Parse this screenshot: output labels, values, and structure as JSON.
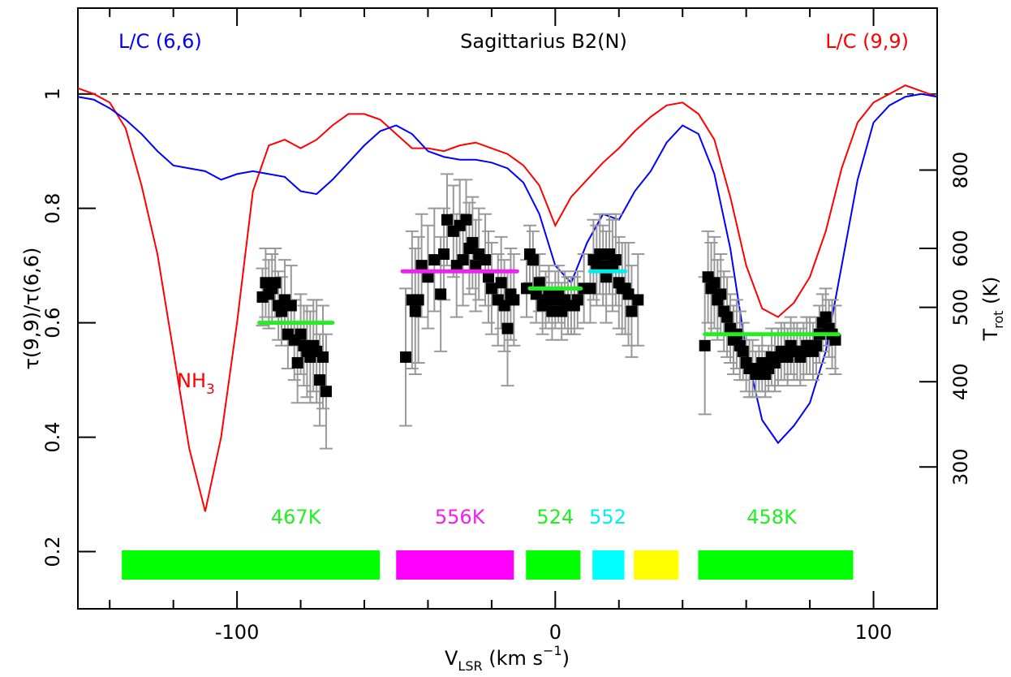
{
  "chart_data": {
    "type": "line",
    "title": "Sagittarius B2(N)",
    "xlim": [
      -150,
      120
    ],
    "ylim": [
      0.1,
      1.15
    ],
    "xticks": [
      -100,
      0,
      100
    ],
    "xminorticks": [
      -140,
      -120,
      -80,
      -60,
      -40,
      -20,
      20,
      40,
      60,
      80,
      120
    ],
    "yticks": [
      0.2,
      0.4,
      0.6,
      0.8,
      1
    ],
    "y2ticks": [
      300,
      400,
      500,
      600,
      800
    ],
    "y2tick_positions": [
      0.348,
      0.497,
      0.627,
      0.73,
      0.867
    ],
    "xlabel": {
      "main": "V",
      "sub": "LSR",
      "mid": " (km s",
      "sup": "−1",
      "end": ")"
    },
    "ylabel": "τ(9,9)/τ(6,6)",
    "y2label": {
      "main": "T",
      "sub": "rot",
      "end": " (K)"
    },
    "reference_line": 1,
    "annotation": {
      "main": "NH",
      "sub": "3"
    },
    "series": [
      {
        "name": "L/C (9,9)",
        "color": "#ff0000",
        "x": [
          -150,
          -145,
          -140,
          -135,
          -130,
          -125,
          -120,
          -115,
          -110,
          -105,
          -100,
          -95,
          -90,
          -85,
          -80,
          -75,
          -70,
          -65,
          -60,
          -55,
          -50,
          -45,
          -40,
          -35,
          -30,
          -25,
          -20,
          -15,
          -10,
          -5,
          0,
          5,
          10,
          15,
          20,
          25,
          30,
          35,
          40,
          45,
          50,
          55,
          60,
          65,
          70,
          75,
          80,
          85,
          90,
          95,
          100,
          105,
          110,
          115,
          120
        ],
        "values": [
          1.01,
          1.0,
          0.985,
          0.94,
          0.84,
          0.72,
          0.55,
          0.38,
          0.27,
          0.4,
          0.6,
          0.83,
          0.91,
          0.92,
          0.905,
          0.92,
          0.945,
          0.965,
          0.965,
          0.955,
          0.93,
          0.905,
          0.905,
          0.9,
          0.91,
          0.915,
          0.905,
          0.895,
          0.875,
          0.84,
          0.77,
          0.82,
          0.85,
          0.88,
          0.905,
          0.935,
          0.96,
          0.98,
          0.985,
          0.965,
          0.92,
          0.82,
          0.7,
          0.625,
          0.61,
          0.635,
          0.68,
          0.76,
          0.87,
          0.95,
          0.985,
          1.0,
          1.015,
          1.005,
          0.995
        ]
      },
      {
        "name": "L/C (6,6)",
        "color": "#0000ff",
        "x": [
          -150,
          -145,
          -140,
          -135,
          -130,
          -125,
          -120,
          -115,
          -110,
          -105,
          -100,
          -95,
          -90,
          -85,
          -80,
          -75,
          -70,
          -65,
          -60,
          -55,
          -50,
          -45,
          -40,
          -35,
          -30,
          -25,
          -20,
          -15,
          -10,
          -5,
          0,
          5,
          10,
          15,
          20,
          25,
          30,
          35,
          40,
          45,
          50,
          55,
          60,
          65,
          70,
          75,
          80,
          85,
          90,
          95,
          100,
          105,
          110,
          115,
          120
        ],
        "values": [
          0.995,
          0.99,
          0.975,
          0.955,
          0.93,
          0.9,
          0.875,
          0.87,
          0.865,
          0.85,
          0.86,
          0.865,
          0.86,
          0.855,
          0.83,
          0.825,
          0.85,
          0.88,
          0.91,
          0.935,
          0.945,
          0.93,
          0.9,
          0.89,
          0.885,
          0.885,
          0.88,
          0.87,
          0.845,
          0.79,
          0.7,
          0.67,
          0.74,
          0.79,
          0.78,
          0.83,
          0.865,
          0.915,
          0.945,
          0.93,
          0.86,
          0.73,
          0.55,
          0.43,
          0.39,
          0.42,
          0.46,
          0.55,
          0.7,
          0.85,
          0.95,
          0.98,
          0.995,
          1.0,
          0.995
        ]
      }
    ],
    "points": {
      "x": [
        -92,
        -91,
        -90,
        -89,
        -88,
        -87,
        -86,
        -85,
        -84,
        -83,
        -82,
        -81,
        -80,
        -79,
        -78,
        -77,
        -76,
        -75,
        -74,
        -73,
        -72,
        -47,
        -45,
        -44,
        -43,
        -42,
        -40,
        -38,
        -36,
        -35,
        -34,
        -32,
        -31,
        -30,
        -29,
        -28,
        -27,
        -26,
        -25,
        -24,
        -22,
        -21,
        -20,
        -18,
        -17,
        -16,
        -15,
        -14,
        -13,
        -9,
        -8,
        -7,
        -6,
        -5,
        -4,
        -3,
        -2,
        -1,
        0,
        1,
        2,
        3,
        4,
        5,
        6,
        7,
        9,
        11,
        12,
        13,
        14,
        15,
        16,
        17,
        18,
        19,
        20,
        21,
        22,
        23,
        24,
        26,
        47,
        48,
        49,
        50,
        51,
        52,
        53,
        54,
        55,
        56,
        57,
        58,
        59,
        60,
        61,
        62,
        63,
        64,
        65,
        66,
        67,
        68,
        69,
        70,
        71,
        72,
        73,
        74,
        75,
        76,
        77,
        78,
        79,
        80,
        81,
        82,
        83,
        84,
        85,
        86,
        87,
        88
      ],
      "values": [
        0.645,
        0.67,
        0.65,
        0.66,
        0.67,
        0.63,
        0.62,
        0.64,
        0.58,
        0.63,
        0.57,
        0.53,
        0.58,
        0.56,
        0.55,
        0.54,
        0.56,
        0.55,
        0.5,
        0.54,
        0.48,
        0.54,
        0.64,
        0.62,
        0.64,
        0.7,
        0.68,
        0.71,
        0.65,
        0.72,
        0.78,
        0.76,
        0.7,
        0.77,
        0.71,
        0.78,
        0.73,
        0.74,
        0.7,
        0.72,
        0.71,
        0.68,
        0.66,
        0.64,
        0.67,
        0.63,
        0.59,
        0.65,
        0.64,
        0.66,
        0.72,
        0.71,
        0.65,
        0.67,
        0.63,
        0.64,
        0.65,
        0.62,
        0.64,
        0.65,
        0.62,
        0.64,
        0.63,
        0.63,
        0.63,
        0.64,
        0.66,
        0.66,
        0.71,
        0.7,
        0.72,
        0.7,
        0.68,
        0.72,
        0.7,
        0.71,
        0.67,
        0.66,
        0.66,
        0.65,
        0.62,
        0.64,
        0.56,
        0.68,
        0.66,
        0.67,
        0.64,
        0.65,
        0.62,
        0.61,
        0.59,
        0.57,
        0.58,
        0.56,
        0.55,
        0.53,
        0.52,
        0.52,
        0.51,
        0.52,
        0.53,
        0.51,
        0.52,
        0.54,
        0.53,
        0.54,
        0.55,
        0.55,
        0.54,
        0.56,
        0.55,
        0.55,
        0.54,
        0.55,
        0.56,
        0.56,
        0.55,
        0.56,
        0.58,
        0.6,
        0.61,
        0.59,
        0.58,
        0.57
      ],
      "errors": [
        0.05,
        0.06,
        0.06,
        0.06,
        0.06,
        0.06,
        0.06,
        0.07,
        0.06,
        0.07,
        0.07,
        0.07,
        0.07,
        0.07,
        0.08,
        0.08,
        0.08,
        0.09,
        0.08,
        0.09,
        0.1,
        0.12,
        0.12,
        0.11,
        0.11,
        0.09,
        0.09,
        0.09,
        0.1,
        0.08,
        0.08,
        0.08,
        0.09,
        0.08,
        0.08,
        0.07,
        0.08,
        0.08,
        0.08,
        0.08,
        0.08,
        0.08,
        0.08,
        0.08,
        0.08,
        0.08,
        0.1,
        0.08,
        0.08,
        0.05,
        0.05,
        0.05,
        0.05,
        0.05,
        0.05,
        0.05,
        0.05,
        0.05,
        0.05,
        0.05,
        0.05,
        0.05,
        0.05,
        0.05,
        0.05,
        0.05,
        0.06,
        0.06,
        0.07,
        0.07,
        0.07,
        0.07,
        0.08,
        0.07,
        0.08,
        0.08,
        0.08,
        0.08,
        0.08,
        0.09,
        0.08,
        0.08,
        0.12,
        0.08,
        0.08,
        0.08,
        0.07,
        0.07,
        0.07,
        0.07,
        0.06,
        0.06,
        0.06,
        0.06,
        0.05,
        0.05,
        0.05,
        0.05,
        0.04,
        0.04,
        0.05,
        0.04,
        0.04,
        0.05,
        0.05,
        0.05,
        0.05,
        0.05,
        0.05,
        0.05,
        0.05,
        0.05,
        0.05,
        0.05,
        0.05,
        0.05,
        0.05,
        0.05,
        0.05,
        0.05,
        0.05,
        0.05,
        0.06,
        0.06
      ]
    },
    "fits": [
      {
        "x": [
          -93,
          -70
        ],
        "value": 0.6,
        "color": "#22ee22",
        "label": "467K"
      },
      {
        "x": [
          -48,
          -12
        ],
        "value": 0.69,
        "color": "#ee22ee",
        "label": "556K"
      },
      {
        "x": [
          -8,
          8
        ],
        "value": 0.66,
        "color": "#22ee22",
        "label": "524"
      },
      {
        "x": [
          11,
          22
        ],
        "value": 0.69,
        "color": "#00eeee",
        "label": "552"
      },
      {
        "x": [
          47,
          89
        ],
        "value": 0.58,
        "color": "#22ee22",
        "label": "458K"
      }
    ],
    "bars": [
      {
        "x": [
          -136.2,
          -55.1
        ],
        "color": "#00ff00"
      },
      {
        "x": [
          -50,
          -13
        ],
        "color": "#ff00ff"
      },
      {
        "x": [
          -9.2,
          7.9
        ],
        "color": "#00ff00"
      },
      {
        "x": [
          11.7,
          21.7
        ],
        "color": "#00ffff"
      },
      {
        "x": [
          24.7,
          38.8
        ],
        "color": "#ffff00"
      },
      {
        "x": [
          44.9,
          93.6
        ],
        "color": "#00ff00"
      }
    ]
  }
}
